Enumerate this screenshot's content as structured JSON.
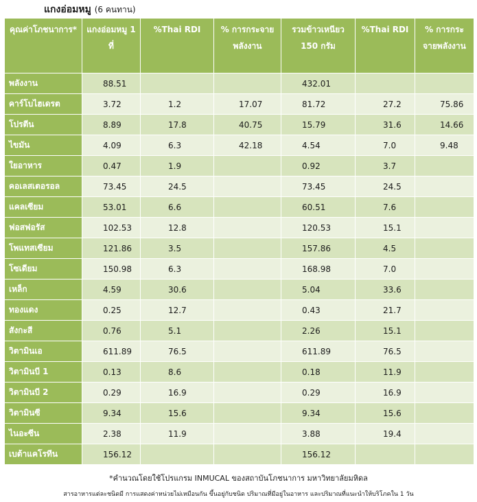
{
  "title": {
    "main": "แกงอ่อมหมู",
    "count": "(6 คนทาน)"
  },
  "columns": [
    "คุณค่าโภชนาการ*",
    "แกงอ่อมหมู 1 ที่",
    "%Thai RDI",
    "% การกระจายพลังงาน",
    "รวมข้าวเหนียว 150 กรัม",
    "%Thai RDI",
    "% การกระจายพลังงาน"
  ],
  "rows": [
    {
      "name": "พลังงาน",
      "v": [
        "88.51",
        "",
        "",
        "432.01",
        "",
        ""
      ]
    },
    {
      "name": "คาร์โบไฮเดรต",
      "v": [
        "3.72",
        "1.2",
        "17.07",
        "81.72",
        "27.2",
        "75.86"
      ]
    },
    {
      "name": "โปรตีน",
      "v": [
        "8.89",
        "17.8",
        "40.75",
        "15.79",
        "31.6",
        "14.66"
      ]
    },
    {
      "name": "ไขมัน",
      "v": [
        "4.09",
        "6.3",
        "42.18",
        "4.54",
        "7.0",
        "9.48"
      ]
    },
    {
      "name": "ใยอาหาร",
      "v": [
        "0.47",
        "1.9",
        "",
        "0.92",
        "3.7",
        ""
      ]
    },
    {
      "name": "คอเลสเตอรอล",
      "v": [
        "73.45",
        "24.5",
        "",
        "73.45",
        "24.5",
        ""
      ]
    },
    {
      "name": "แคลเซียม",
      "v": [
        "53.01",
        "6.6",
        "",
        "60.51",
        "7.6",
        ""
      ]
    },
    {
      "name": "ฟอสฟอรัส",
      "v": [
        "102.53",
        "12.8",
        "",
        "120.53",
        "15.1",
        ""
      ]
    },
    {
      "name": "โพแทสเซียม",
      "v": [
        "121.86",
        "3.5",
        "",
        "157.86",
        "4.5",
        ""
      ]
    },
    {
      "name": "โซเดียม",
      "v": [
        "150.98",
        "6.3",
        "",
        "168.98",
        "7.0",
        ""
      ]
    },
    {
      "name": "เหล็ก",
      "v": [
        "4.59",
        "30.6",
        "",
        "5.04",
        "33.6",
        ""
      ]
    },
    {
      "name": "ทองแดง",
      "v": [
        "0.25",
        "12.7",
        "",
        "0.43",
        "21.7",
        ""
      ]
    },
    {
      "name": "สังกะสี",
      "v": [
        "0.76",
        "5.1",
        "",
        "2.26",
        "15.1",
        ""
      ]
    },
    {
      "name": "วิตามินเอ",
      "v": [
        "611.89",
        "76.5",
        "",
        "611.89",
        "76.5",
        ""
      ]
    },
    {
      "name": "วิตามินบี 1",
      "v": [
        "0.13",
        "8.6",
        "",
        "0.18",
        "11.9",
        ""
      ]
    },
    {
      "name": "วิตามินบี 2",
      "v": [
        "0.29",
        "16.9",
        "",
        "0.29",
        "16.9",
        ""
      ]
    },
    {
      "name": "วิตามินซี",
      "v": [
        "9.34",
        "15.6",
        "",
        "9.34",
        "15.6",
        ""
      ]
    },
    {
      "name": "ไนอะซีน",
      "v": [
        "2.38",
        "11.9",
        "",
        "3.88",
        "19.4",
        ""
      ]
    },
    {
      "name": "เบต้าแคโรทีน",
      "v": [
        "156.12",
        "",
        "",
        "156.12",
        "",
        ""
      ]
    }
  ],
  "footnote": "*คำนวณโดยใช้โปรแกรม INMUCAL ของสถาบันโภชนาการ มหาวิทยาลัยมหิดล",
  "footnote2": "สารอาหารแต่ละชนิดมี การแสดงค่าหน่วยไม่เหมือนกัน ขึ้นอยู่กับชนิด ปริมาณที่มีอยู่ในอาหาร และปริมาณที่แนะนำให้บริโภคใน 1 วัน",
  "colors": {
    "header": "#9bbb59",
    "row_dark": "#d7e4bd",
    "row_light": "#ebf1de"
  }
}
